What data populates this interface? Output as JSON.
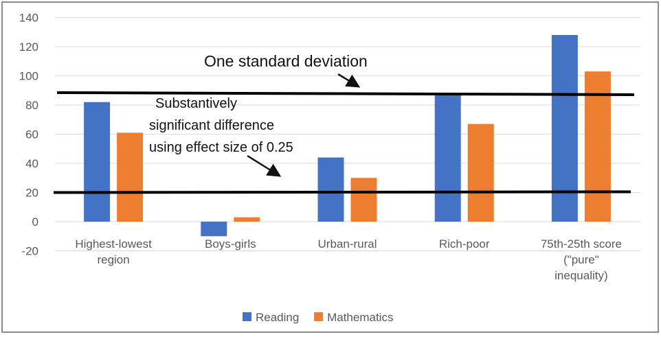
{
  "chart_data": {
    "type": "bar",
    "categories": [
      [
        "Highest-lowest",
        "region"
      ],
      [
        "Boys-girls"
      ],
      [
        "Urban-rural"
      ],
      [
        "Rich-poor"
      ],
      [
        "75th-25th score",
        "(\"pure\"",
        "inequality)"
      ]
    ],
    "series": [
      {
        "name": "Reading",
        "color": "#4472C4",
        "values": [
          82,
          -10,
          44,
          87,
          128
        ]
      },
      {
        "name": "Mathematics",
        "color": "#ED7D31",
        "values": [
          61,
          3,
          30,
          67,
          103
        ]
      }
    ],
    "ylim": [
      -20,
      140
    ],
    "yticks": [
      -20,
      0,
      20,
      40,
      60,
      80,
      100,
      120,
      140
    ],
    "grid": true,
    "legend": "bottom",
    "reference_lines": [
      {
        "value": 88,
        "label": "One standard deviation"
      },
      {
        "value": 20,
        "label": [
          "Substantively",
          "significant difference",
          "using effect size of 0.25"
        ]
      }
    ]
  }
}
